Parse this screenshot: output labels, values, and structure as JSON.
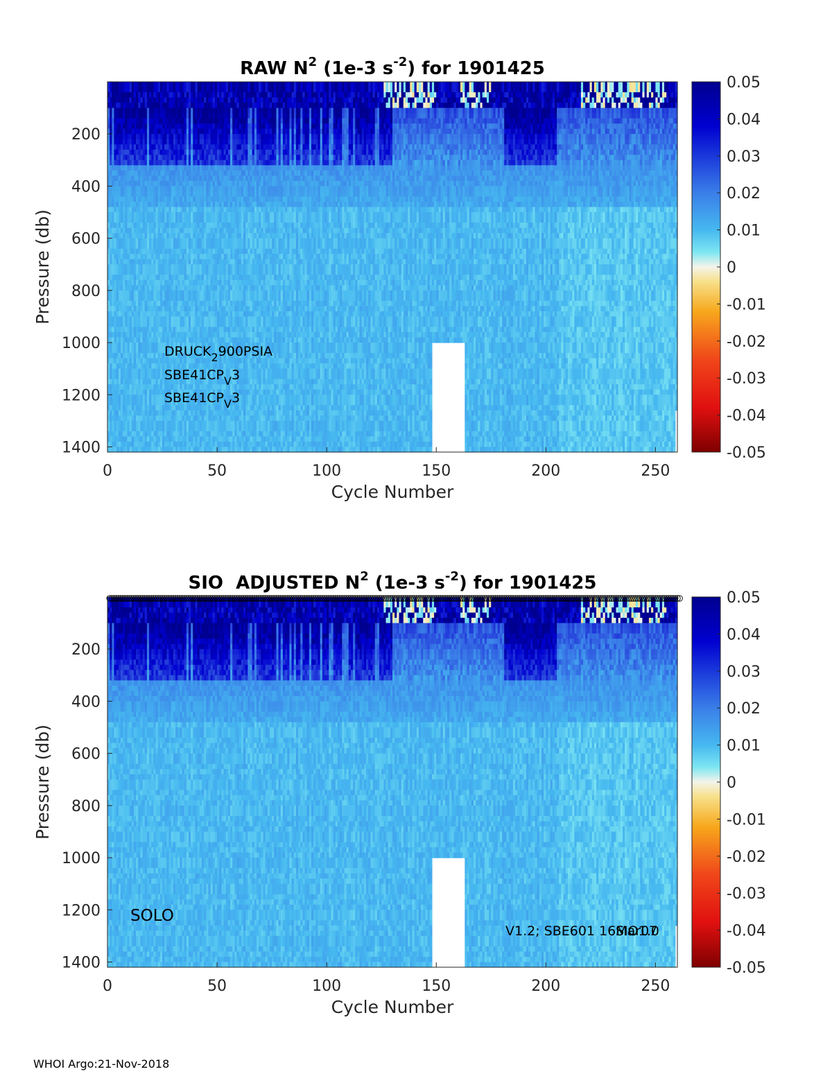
{
  "footer": "WHOI Argo:21-Nov-2018",
  "chart_data": [
    {
      "type": "heatmap",
      "title": "RAW N² (1e-3 s⁻²) for 1901425",
      "title_parts": {
        "pre": "RAW N",
        "sup1": "2",
        "mid": " (1e-3 s",
        "sup2": "-2",
        "post": ") for 1901425"
      },
      "xlabel": "Cycle Number",
      "ylabel": "Pressure (db)",
      "xlim": [
        0,
        260
      ],
      "ylim": [
        0,
        1420
      ],
      "xticks": [
        "0",
        "50",
        "100",
        "150",
        "200",
        "250"
      ],
      "xtick_values": [
        0,
        50,
        100,
        150,
        200,
        250
      ],
      "yticks": [
        "200",
        "400",
        "600",
        "800",
        "1000",
        "1200",
        "1400"
      ],
      "ytick_values": [
        200,
        400,
        600,
        800,
        1000,
        1200,
        1400
      ],
      "colorbar": {
        "clim": [
          -0.05,
          0.05
        ],
        "ticks": [
          "0.05",
          "0.04",
          "0.03",
          "0.02",
          "0.01",
          "0",
          "-0.01",
          "-0.02",
          "-0.03",
          "-0.04",
          "-0.05"
        ],
        "tick_values": [
          0.05,
          0.04,
          0.03,
          0.02,
          0.01,
          0,
          -0.01,
          -0.02,
          -0.03,
          -0.04,
          -0.05
        ]
      },
      "annotations": [
        {
          "text": "DRUCK",
          "sub": "2",
          "rest": "900PSIA"
        },
        {
          "text": "SBE41CP",
          "sub": "V",
          "rest": "3"
        },
        {
          "text": "SBE41CP",
          "sub": "V",
          "rest": "3"
        }
      ],
      "features": {
        "strong_stratification_depth_range_db": [
          0,
          320
        ],
        "typical_deep_value": 0.01,
        "data_gap_cycles": [
          148,
          163
        ],
        "data_gap_from_db": 1000
      }
    },
    {
      "type": "heatmap",
      "title": "SIO ADJUSTED N² (1e-3 s⁻²) for 1901425",
      "title_parts": {
        "pre": "SIO  ADJUSTED N",
        "sup1": "2",
        "mid": " (1e-3 s",
        "sup2": "-2",
        "post": ") for 1901425"
      },
      "xlabel": "Cycle Number",
      "ylabel": "Pressure (db)",
      "xlim": [
        0,
        260
      ],
      "ylim": [
        0,
        1420
      ],
      "xticks": [
        "0",
        "50",
        "100",
        "150",
        "200",
        "250"
      ],
      "xtick_values": [
        0,
        50,
        100,
        150,
        200,
        250
      ],
      "yticks": [
        "200",
        "400",
        "600",
        "800",
        "1000",
        "1200",
        "1400"
      ],
      "ytick_values": [
        200,
        400,
        600,
        800,
        1000,
        1200,
        1400
      ],
      "colorbar": {
        "clim": [
          -0.05,
          0.05
        ],
        "ticks": [
          "0.05",
          "0.04",
          "0.03",
          "0.02",
          "0.01",
          "0",
          "-0.01",
          "-0.02",
          "-0.03",
          "-0.04",
          "-0.05"
        ],
        "tick_values": [
          0.05,
          0.04,
          0.03,
          0.02,
          0.01,
          0,
          -0.01,
          -0.02,
          -0.03,
          -0.04,
          -0.05
        ]
      },
      "annotations": [
        {
          "text": "SOLO"
        },
        {
          "text": "V1.2; SBE601 16Mar07"
        },
        {
          "text": "SIO1.0"
        }
      ],
      "features": {
        "strong_stratification_depth_range_db": [
          0,
          320
        ],
        "typical_deep_value": 0.01,
        "data_gap_cycles": [
          148,
          163
        ],
        "data_gap_from_db": 1000
      }
    }
  ]
}
